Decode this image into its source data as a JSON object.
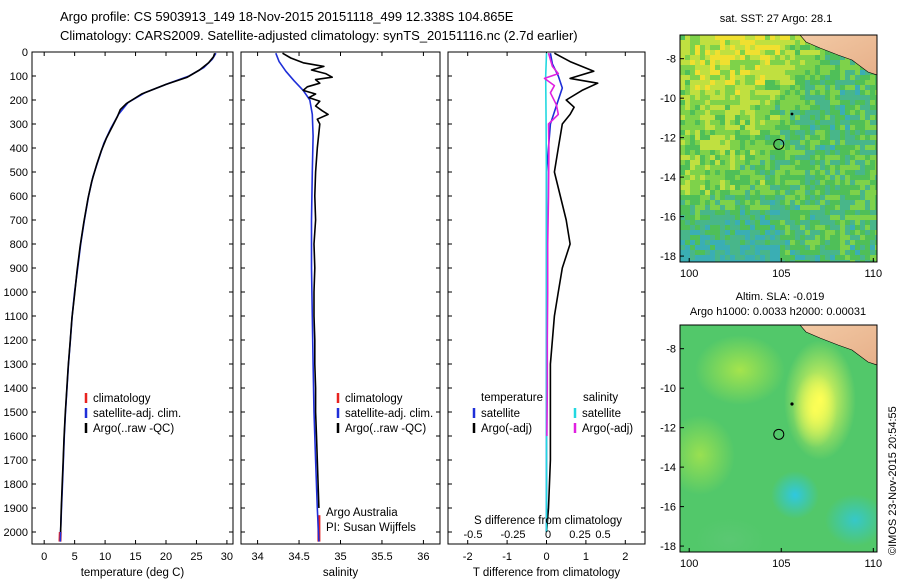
{
  "header": {
    "title_line1": "Argo profile: CS 5903913_149 18-Nov-2015 20151118_499 12.338S 104.865E",
    "title_line2": "Climatology: CARS2009. Satellite-adjusted climatology: synTS_20151116.nc (2.7d earlier)"
  },
  "colors": {
    "climatology": "#e8231f",
    "satellite_clim": "#1f2fd8",
    "argo": "#000000",
    "satellite_salinity": "#22d8e0",
    "argo_salinity_adj": "#e020e0"
  },
  "chart_data": [
    {
      "type": "line",
      "name": "temperature-profile",
      "xlabel": "temperature (deg C)",
      "xlim": [
        -2,
        31
      ],
      "xticks": [
        0,
        5,
        10,
        15,
        20,
        25,
        30
      ],
      "ylim": [
        2050,
        0
      ],
      "yticks": [
        0,
        100,
        200,
        300,
        400,
        500,
        600,
        700,
        800,
        900,
        1000,
        1100,
        1200,
        1300,
        1400,
        1500,
        1600,
        1700,
        1800,
        1900,
        2000
      ],
      "legend": [
        "climatology",
        "satellite-adj. clim.",
        "Argo(..raw -QC)"
      ],
      "series": [
        {
          "name": "climatology",
          "color_key": "climatology",
          "points": [
            [
              2.6,
              2040
            ],
            [
              2.65,
              2000
            ]
          ]
        },
        {
          "name": "satellite-adj. clim.",
          "color_key": "satellite_clim",
          "points": [
            [
              28.2,
              5
            ],
            [
              27.6,
              30
            ],
            [
              26.2,
              65
            ],
            [
              23.8,
              100
            ],
            [
              20.5,
              130
            ],
            [
              16.5,
              170
            ],
            [
              13.8,
              210
            ],
            [
              12.2,
              260
            ],
            [
              10.9,
              320
            ],
            [
              9.8,
              380
            ],
            [
              8.9,
              450
            ],
            [
              8.0,
              520
            ],
            [
              7.3,
              600
            ],
            [
              6.6,
              700
            ],
            [
              6.0,
              800
            ],
            [
              5.5,
              900
            ],
            [
              5.0,
              1000
            ],
            [
              4.6,
              1100
            ],
            [
              4.3,
              1200
            ],
            [
              4.0,
              1300
            ],
            [
              3.75,
              1400
            ],
            [
              3.5,
              1500
            ],
            [
              3.3,
              1600
            ],
            [
              3.15,
              1700
            ],
            [
              3.0,
              1800
            ],
            [
              2.85,
              1900
            ],
            [
              2.7,
              2000
            ],
            [
              2.65,
              2040
            ]
          ]
        },
        {
          "name": "Argo(..raw -QC)",
          "color_key": "argo",
          "points": [
            [
              28.0,
              5
            ],
            [
              27.8,
              20
            ],
            [
              27.0,
              45
            ],
            [
              25.5,
              75
            ],
            [
              23.5,
              105
            ],
            [
              20.0,
              135
            ],
            [
              16.0,
              175
            ],
            [
              13.5,
              215
            ],
            [
              12.5,
              240
            ],
            [
              12.0,
              270
            ],
            [
              11.0,
              320
            ],
            [
              10.2,
              360
            ],
            [
              9.4,
              410
            ],
            [
              8.6,
              470
            ],
            [
              7.8,
              540
            ],
            [
              7.2,
              610
            ],
            [
              6.5,
              710
            ],
            [
              5.9,
              810
            ],
            [
              5.4,
              910
            ],
            [
              5.0,
              1010
            ],
            [
              4.55,
              1110
            ],
            [
              4.25,
              1210
            ],
            [
              3.95,
              1310
            ],
            [
              3.7,
              1410
            ],
            [
              3.45,
              1510
            ],
            [
              3.25,
              1610
            ],
            [
              3.1,
              1710
            ],
            [
              2.95,
              1810
            ],
            [
              2.8,
              1910
            ],
            [
              2.7,
              2000
            ]
          ]
        }
      ]
    },
    {
      "type": "line",
      "name": "salinity-profile",
      "xlabel": "salinity",
      "xlim": [
        33.8,
        36.2
      ],
      "xticks": [
        34,
        34.5,
        35,
        35.5,
        36
      ],
      "ylim": [
        2050,
        0
      ],
      "legend": [
        "climatology",
        "satellite-adj. clim.",
        "Argo(..raw -QC)"
      ],
      "annotations": [
        "Argo Australia",
        "PI: Susan Wijffels"
      ],
      "series": [
        {
          "name": "climatology",
          "color_key": "climatology",
          "points": [
            [
              34.74,
              2040
            ],
            [
              34.74,
              1930
            ]
          ]
        },
        {
          "name": "satellite-adj. clim.",
          "color_key": "satellite_clim",
          "points": [
            [
              34.22,
              5
            ],
            [
              34.26,
              40
            ],
            [
              34.34,
              80
            ],
            [
              34.44,
              120
            ],
            [
              34.55,
              160
            ],
            [
              34.63,
              200
            ],
            [
              34.66,
              260
            ],
            [
              34.67,
              350
            ],
            [
              34.66,
              500
            ],
            [
              34.65,
              700
            ],
            [
              34.65,
              900
            ],
            [
              34.66,
              1100
            ],
            [
              34.67,
              1300
            ],
            [
              34.68,
              1500
            ],
            [
              34.7,
              1700
            ],
            [
              34.72,
              1900
            ],
            [
              34.74,
              2040
            ]
          ]
        },
        {
          "name": "Argo(..raw -QC)",
          "color_key": "argo",
          "points": [
            [
              34.3,
              5
            ],
            [
              34.4,
              25
            ],
            [
              34.55,
              45
            ],
            [
              34.8,
              60
            ],
            [
              34.65,
              75
            ],
            [
              34.82,
              90
            ],
            [
              34.9,
              105
            ],
            [
              34.7,
              115
            ],
            [
              34.75,
              130
            ],
            [
              34.6,
              145
            ],
            [
              34.55,
              160
            ],
            [
              34.7,
              175
            ],
            [
              34.62,
              190
            ],
            [
              34.75,
              205
            ],
            [
              34.7,
              225
            ],
            [
              34.78,
              245
            ],
            [
              34.85,
              260
            ],
            [
              34.72,
              280
            ],
            [
              34.75,
              300
            ],
            [
              34.72,
              400
            ],
            [
              34.7,
              500
            ],
            [
              34.69,
              600
            ],
            [
              34.7,
              700
            ],
            [
              34.68,
              800
            ],
            [
              34.69,
              900
            ],
            [
              34.68,
              1000
            ],
            [
              34.68,
              1100
            ],
            [
              34.69,
              1200
            ],
            [
              34.69,
              1300
            ],
            [
              34.7,
              1400
            ],
            [
              34.7,
              1500
            ],
            [
              34.71,
              1600
            ],
            [
              34.72,
              1700
            ],
            [
              34.73,
              1800
            ],
            [
              34.74,
              1900
            ]
          ]
        }
      ]
    },
    {
      "type": "line",
      "name": "difference-profile",
      "xlabel": "T difference from climatology",
      "xlabel_top": "S difference from climatology",
      "xlim": [
        -2.5,
        2.5
      ],
      "xticks": [
        -2,
        -1,
        0,
        1,
        2
      ],
      "xticks_top": [
        -0.5,
        -0.25,
        0,
        0.25,
        0.5
      ],
      "ylim": [
        2050,
        0
      ],
      "legend_groups": [
        {
          "title": "temperature",
          "items": [
            [
              "satellite",
              "satellite_clim"
            ],
            [
              "Argo(-adj)",
              "argo"
            ]
          ]
        },
        {
          "title": "salinity",
          "items": [
            [
              "satellite",
              "satellite_salinity"
            ],
            [
              "Argo(-adj)",
              "argo_salinity_adj"
            ]
          ]
        }
      ],
      "series": [
        {
          "name": "temperature satellite",
          "color_key": "satellite_clim",
          "points": [
            [
              0.1,
              5
            ],
            [
              0.15,
              50
            ],
            [
              0.3,
              100
            ],
            [
              0.4,
              150
            ],
            [
              0.3,
              200
            ],
            [
              0.1,
              300
            ],
            [
              0,
              500
            ],
            [
              0,
              1000
            ],
            [
              0,
              1500
            ],
            [
              0,
              2000
            ]
          ]
        },
        {
          "name": "temperature Argo(-adj)",
          "color_key": "argo",
          "points": [
            [
              0.2,
              5
            ],
            [
              0.6,
              40
            ],
            [
              1.2,
              80
            ],
            [
              0.6,
              110
            ],
            [
              1.3,
              130
            ],
            [
              0.9,
              160
            ],
            [
              0.5,
              200
            ],
            [
              0.7,
              230
            ],
            [
              0.6,
              260
            ],
            [
              0.4,
              300
            ],
            [
              0.3,
              400
            ],
            [
              0.2,
              500
            ],
            [
              0.35,
              600
            ],
            [
              0.5,
              700
            ],
            [
              0.6,
              800
            ],
            [
              0.4,
              900
            ],
            [
              0.3,
              1000
            ],
            [
              0.2,
              1100
            ],
            [
              0.15,
              1200
            ],
            [
              0.1,
              1300
            ],
            [
              0.1,
              1500
            ],
            [
              0.1,
              1700
            ],
            [
              0.05,
              1900
            ],
            [
              0,
              2000
            ]
          ]
        },
        {
          "name": "salinity satellite",
          "color_key": "satellite_salinity",
          "points": [
            [
              0,
              5
            ],
            [
              -0.02,
              100
            ],
            [
              -0.01,
              300
            ],
            [
              0,
              600
            ],
            [
              0,
              1000
            ],
            [
              0,
              1500
            ],
            [
              0,
              2000
            ]
          ]
        },
        {
          "name": "salinity Argo(-adj)",
          "color_key": "argo_salinity_adj",
          "points": [
            [
              0.05,
              5
            ],
            [
              0.15,
              60
            ],
            [
              0.3,
              90
            ],
            [
              -0.05,
              110
            ],
            [
              0.2,
              140
            ],
            [
              0.1,
              170
            ],
            [
              0.25,
              220
            ],
            [
              0.3,
              260
            ],
            [
              0.05,
              300
            ],
            [
              0.06,
              400
            ],
            [
              0.05,
              600
            ],
            [
              0.03,
              800
            ],
            [
              0.03,
              1000
            ],
            [
              0.02,
              1200
            ],
            [
              0.02,
              1400
            ],
            [
              0.01,
              1600
            ]
          ]
        }
      ]
    },
    {
      "type": "heatmap",
      "name": "sst-map",
      "title": "sat. SST: 27 Argo: 28.1",
      "xticks": [
        100,
        105,
        110
      ],
      "yticks": [
        -8,
        -10,
        -12,
        -14,
        -16,
        -18
      ],
      "xlim": [
        99.5,
        110.2
      ],
      "ylim": [
        -18.3,
        -6.8
      ],
      "argo_position": [
        104.865,
        -12.338
      ]
    },
    {
      "type": "heatmap",
      "name": "sla-map",
      "title_line1": "Altim. SLA: -0.019",
      "title_line2": "Argo h1000: 0.0033 h2000: 0.00031",
      "xticks": [
        100,
        105,
        110
      ],
      "yticks": [
        -8,
        -10,
        -12,
        -14,
        -16,
        -18
      ],
      "xlim": [
        99.5,
        110.2
      ],
      "ylim": [
        -18.3,
        -6.8
      ],
      "argo_position": [
        104.865,
        -12.338
      ]
    }
  ],
  "footer": {
    "credit": "©IMOS 23-Nov-2015 20:54:55"
  }
}
